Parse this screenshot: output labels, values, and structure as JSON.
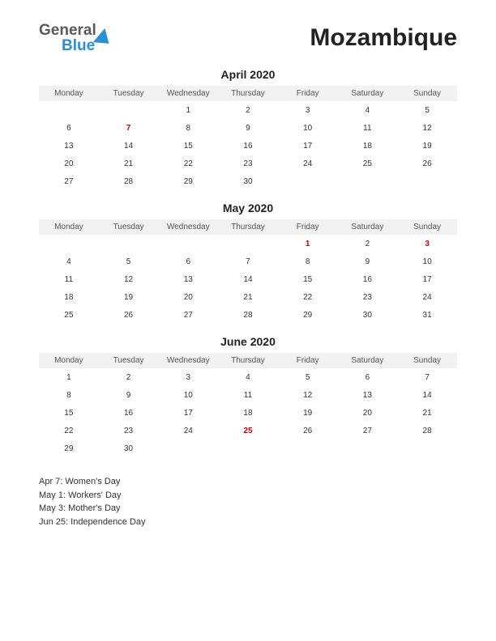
{
  "logo": {
    "top": "General",
    "bottom": "Blue"
  },
  "country": "Mozambique",
  "day_headers": [
    "Monday",
    "Tuesday",
    "Wednesday",
    "Thursday",
    "Friday",
    "Saturday",
    "Sunday"
  ],
  "months": [
    {
      "title": "April 2020",
      "weeks": [
        [
          {
            "d": ""
          },
          {
            "d": ""
          },
          {
            "d": "1"
          },
          {
            "d": "2"
          },
          {
            "d": "3"
          },
          {
            "d": "4"
          },
          {
            "d": "5"
          }
        ],
        [
          {
            "d": "6"
          },
          {
            "d": "7",
            "h": true
          },
          {
            "d": "8"
          },
          {
            "d": "9"
          },
          {
            "d": "10"
          },
          {
            "d": "11"
          },
          {
            "d": "12"
          }
        ],
        [
          {
            "d": "13"
          },
          {
            "d": "14"
          },
          {
            "d": "15"
          },
          {
            "d": "16"
          },
          {
            "d": "17"
          },
          {
            "d": "18"
          },
          {
            "d": "19"
          }
        ],
        [
          {
            "d": "20"
          },
          {
            "d": "21"
          },
          {
            "d": "22"
          },
          {
            "d": "23"
          },
          {
            "d": "24"
          },
          {
            "d": "25"
          },
          {
            "d": "26"
          }
        ],
        [
          {
            "d": "27"
          },
          {
            "d": "28"
          },
          {
            "d": "29"
          },
          {
            "d": "30"
          },
          {
            "d": ""
          },
          {
            "d": ""
          },
          {
            "d": ""
          }
        ]
      ]
    },
    {
      "title": "May 2020",
      "weeks": [
        [
          {
            "d": ""
          },
          {
            "d": ""
          },
          {
            "d": ""
          },
          {
            "d": ""
          },
          {
            "d": "1",
            "h": true
          },
          {
            "d": "2"
          },
          {
            "d": "3",
            "h": true
          }
        ],
        [
          {
            "d": "4"
          },
          {
            "d": "5"
          },
          {
            "d": "6"
          },
          {
            "d": "7"
          },
          {
            "d": "8"
          },
          {
            "d": "9"
          },
          {
            "d": "10"
          }
        ],
        [
          {
            "d": "11"
          },
          {
            "d": "12"
          },
          {
            "d": "13"
          },
          {
            "d": "14"
          },
          {
            "d": "15"
          },
          {
            "d": "16"
          },
          {
            "d": "17"
          }
        ],
        [
          {
            "d": "18"
          },
          {
            "d": "19"
          },
          {
            "d": "20"
          },
          {
            "d": "21"
          },
          {
            "d": "22"
          },
          {
            "d": "23"
          },
          {
            "d": "24"
          }
        ],
        [
          {
            "d": "25"
          },
          {
            "d": "26"
          },
          {
            "d": "27"
          },
          {
            "d": "28"
          },
          {
            "d": "29"
          },
          {
            "d": "30"
          },
          {
            "d": "31"
          }
        ]
      ]
    },
    {
      "title": "June 2020",
      "weeks": [
        [
          {
            "d": "1"
          },
          {
            "d": "2"
          },
          {
            "d": "3"
          },
          {
            "d": "4"
          },
          {
            "d": "5"
          },
          {
            "d": "6"
          },
          {
            "d": "7"
          }
        ],
        [
          {
            "d": "8"
          },
          {
            "d": "9"
          },
          {
            "d": "10"
          },
          {
            "d": "11"
          },
          {
            "d": "12"
          },
          {
            "d": "13"
          },
          {
            "d": "14"
          }
        ],
        [
          {
            "d": "15"
          },
          {
            "d": "16"
          },
          {
            "d": "17"
          },
          {
            "d": "18"
          },
          {
            "d": "19"
          },
          {
            "d": "20"
          },
          {
            "d": "21"
          }
        ],
        [
          {
            "d": "22"
          },
          {
            "d": "23"
          },
          {
            "d": "24"
          },
          {
            "d": "25",
            "h": true
          },
          {
            "d": "26"
          },
          {
            "d": "27"
          },
          {
            "d": "28"
          }
        ],
        [
          {
            "d": "29"
          },
          {
            "d": "30"
          },
          {
            "d": ""
          },
          {
            "d": ""
          },
          {
            "d": ""
          },
          {
            "d": ""
          },
          {
            "d": ""
          }
        ]
      ]
    }
  ],
  "holidays": [
    "Apr 7: Women's Day",
    "May 1: Workers' Day",
    "May 3: Mother's Day",
    "Jun 25: Independence Day"
  ],
  "colors": {
    "holiday": "#cc0000",
    "header_bg": "#f2f2f2",
    "text": "#333333",
    "logo_blue": "#2b8fd6"
  }
}
